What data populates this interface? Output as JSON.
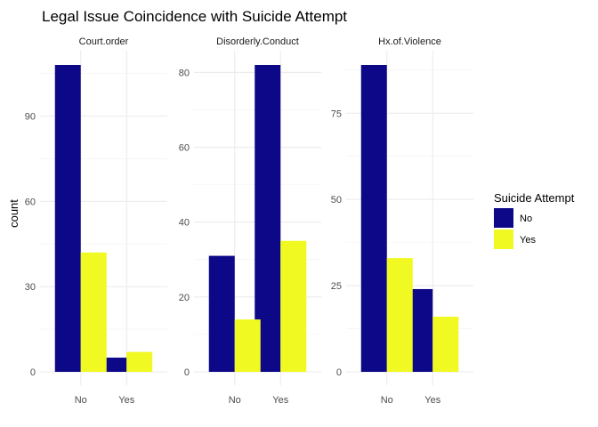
{
  "chart_data": {
    "type": "bar",
    "title": "Legal Issue Coincidence with Suicide Attempt",
    "xlabel": "",
    "ylabel": "count",
    "legend": {
      "title": "Suicide Attempt",
      "placement": "right",
      "entries": [
        {
          "label": "No",
          "color": "#0D0887"
        },
        {
          "label": "Yes",
          "color": "#F0F921"
        }
      ]
    },
    "grid": true,
    "facets": [
      {
        "title": "Court.order",
        "categories": [
          "No",
          "Yes"
        ],
        "ylim": [
          0,
          108
        ],
        "yticks": [
          0,
          30,
          60,
          90
        ],
        "series": [
          {
            "name": "No",
            "values": [
              108,
              5
            ]
          },
          {
            "name": "Yes",
            "values": [
              42,
              7
            ]
          }
        ]
      },
      {
        "title": "Disorderly.Conduct",
        "categories": [
          "No",
          "Yes"
        ],
        "ylim": [
          0,
          82
        ],
        "yticks": [
          0,
          20,
          40,
          60,
          80
        ],
        "series": [
          {
            "name": "No",
            "values": [
              31,
              82
            ]
          },
          {
            "name": "Yes",
            "values": [
              14,
              35
            ]
          }
        ]
      },
      {
        "title": "Hx.of.Violence",
        "categories": [
          "No",
          "Yes"
        ],
        "ylim": [
          0,
          89
        ],
        "yticks": [
          0,
          25,
          50,
          75
        ],
        "series": [
          {
            "name": "No",
            "values": [
              89,
              24
            ]
          },
          {
            "name": "Yes",
            "values": [
              33,
              16
            ]
          }
        ]
      }
    ]
  }
}
